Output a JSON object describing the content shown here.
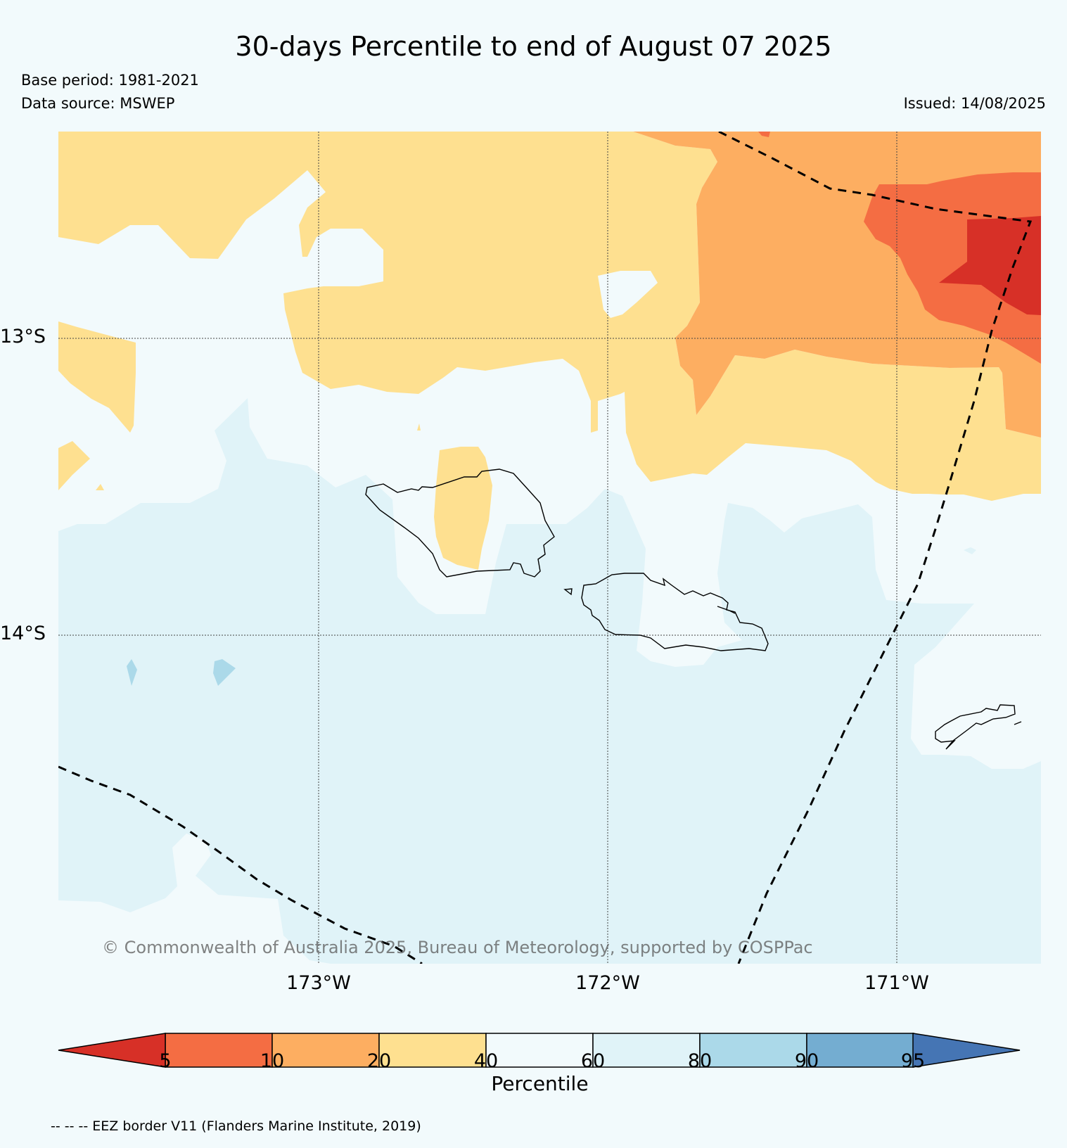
{
  "header": {
    "title": "30-days Percentile to end of August 07 2025",
    "base_period": "Base period: 1981-2021",
    "data_source": "Data source: MSWEP",
    "issued": "Issued: 14/08/2025"
  },
  "map": {
    "lat_labels": [
      "13°S",
      "14°S"
    ],
    "lon_labels": [
      "173°W",
      "172°W",
      "171°W"
    ],
    "copyright": "© Commonwealth of Australia 2025, Bureau of Meteorology, supported by COSPPac"
  },
  "colorbar": {
    "ticks": [
      "5",
      "10",
      "20",
      "40",
      "60",
      "80",
      "90",
      "95"
    ],
    "label": "Percentile",
    "colors": [
      "#d73027",
      "#f46d43",
      "#fdae61",
      "#fee090",
      "#f2fafc",
      "#e0f3f8",
      "#abd9e9",
      "#74add1",
      "#4575b4"
    ]
  },
  "legend": {
    "eez_note": "-- -- -- EEZ border V11 (Flanders Marine Institute, 2019)"
  }
}
